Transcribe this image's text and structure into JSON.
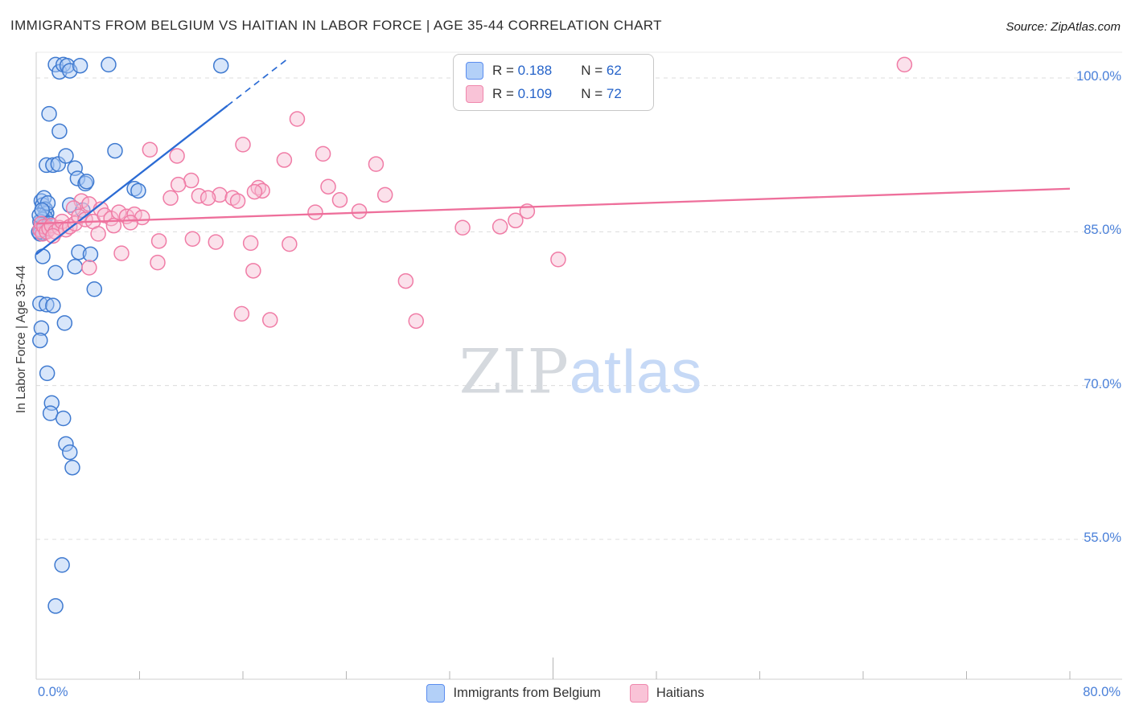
{
  "header": {
    "title": "IMMIGRANTS FROM BELGIUM VS HAITIAN IN LABOR FORCE | AGE 35-44 CORRELATION CHART",
    "source": "Source: ZipAtlas.com"
  },
  "watermark": {
    "part1": "ZIP",
    "part2": "atlas"
  },
  "legend_box": {
    "rows": [
      {
        "series": "Immigrants from Belgium",
        "r_label": "R =",
        "r_value": "0.188",
        "n_label": "N =",
        "n_value": "62"
      },
      {
        "series": "Haitians",
        "r_label": "R =",
        "r_value": "0.109",
        "n_label": "N =",
        "n_value": "72"
      }
    ]
  },
  "chart_data": {
    "type": "scatter",
    "title": "Immigrants from Belgium vs Haitian | In Labor Force | Age 35-44",
    "xlabel": "",
    "ylabel": "In Labor Force | Age 35-44",
    "x_min": 0,
    "x_max": 80,
    "y_gridlines": [
      100,
      85,
      70,
      55
    ],
    "y_ticks": [
      {
        "value": 100,
        "label": "100.0%"
      },
      {
        "value": 85,
        "label": "85.0%"
      },
      {
        "value": 70,
        "label": "70.0%"
      },
      {
        "value": 55,
        "label": "55.0%"
      }
    ],
    "x_end_labels": {
      "left": "0.0%",
      "right": "80.0%"
    },
    "x_minor_ticks": [
      8,
      16,
      24,
      32,
      40,
      48,
      56,
      64,
      72,
      80
    ],
    "grid": true,
    "legend_position": "bottom-center",
    "series": [
      {
        "name": "Immigrants from Belgium",
        "color": "#3f7ad0",
        "fill": "#a8c8f5",
        "r": 0.188,
        "n": 62,
        "points": [
          [
            1.5,
            101.3
          ],
          [
            1.8,
            100.6
          ],
          [
            2.1,
            101.3
          ],
          [
            2.4,
            101.2
          ],
          [
            2.6,
            100.7
          ],
          [
            3.4,
            101.2
          ],
          [
            5.6,
            101.3
          ],
          [
            14.3,
            101.2
          ],
          [
            1.0,
            96.5
          ],
          [
            1.8,
            94.8
          ],
          [
            0.8,
            91.5
          ],
          [
            1.3,
            91.5
          ],
          [
            1.7,
            91.6
          ],
          [
            2.3,
            92.4
          ],
          [
            6.1,
            92.9
          ],
          [
            3.0,
            91.2
          ],
          [
            3.2,
            90.2
          ],
          [
            3.8,
            89.7
          ],
          [
            0.4,
            88.0
          ],
          [
            0.5,
            87.6
          ],
          [
            0.6,
            88.3
          ],
          [
            0.7,
            87.2
          ],
          [
            0.8,
            86.8
          ],
          [
            0.9,
            87.8
          ],
          [
            0.7,
            86.4
          ],
          [
            0.5,
            86.2
          ],
          [
            0.6,
            85.8
          ],
          [
            0.4,
            85.5
          ],
          [
            0.3,
            86.0
          ],
          [
            0.35,
            85.2
          ],
          [
            0.3,
            84.8
          ],
          [
            0.55,
            84.9
          ],
          [
            0.25,
            86.6
          ],
          [
            0.45,
            87.1
          ],
          [
            1.0,
            85.8
          ],
          [
            0.2,
            85.0
          ],
          [
            2.6,
            87.6
          ],
          [
            3.6,
            87.1
          ],
          [
            3.9,
            89.9
          ],
          [
            7.6,
            89.2
          ],
          [
            7.9,
            89.0
          ],
          [
            0.5,
            82.6
          ],
          [
            1.5,
            81.0
          ],
          [
            3.0,
            81.6
          ],
          [
            3.3,
            83.0
          ],
          [
            4.2,
            82.8
          ],
          [
            4.5,
            79.4
          ],
          [
            0.3,
            78.0
          ],
          [
            0.8,
            77.9
          ],
          [
            1.3,
            77.8
          ],
          [
            0.4,
            75.6
          ],
          [
            2.2,
            76.1
          ],
          [
            0.3,
            74.4
          ],
          [
            0.85,
            71.2
          ],
          [
            1.2,
            68.3
          ],
          [
            1.1,
            67.3
          ],
          [
            2.1,
            66.8
          ],
          [
            2.3,
            64.3
          ],
          [
            2.6,
            63.5
          ],
          [
            2.8,
            62.0
          ],
          [
            2.0,
            52.5
          ],
          [
            1.5,
            48.5
          ]
        ]
      },
      {
        "name": "Haitians",
        "color": "#f07ca6",
        "fill": "#f7bcd2",
        "r": 0.109,
        "n": 72,
        "points": [
          [
            67.2,
            101.3
          ],
          [
            20.2,
            96.0
          ],
          [
            16.0,
            93.5
          ],
          [
            8.8,
            93.0
          ],
          [
            22.2,
            92.6
          ],
          [
            10.9,
            92.4
          ],
          [
            19.2,
            92.0
          ],
          [
            26.3,
            91.6
          ],
          [
            12.0,
            90.0
          ],
          [
            11.0,
            89.6
          ],
          [
            22.6,
            89.4
          ],
          [
            17.2,
            89.3
          ],
          [
            17.5,
            89.0
          ],
          [
            16.9,
            88.9
          ],
          [
            27.0,
            88.6
          ],
          [
            14.2,
            88.6
          ],
          [
            12.6,
            88.5
          ],
          [
            13.3,
            88.3
          ],
          [
            15.2,
            88.3
          ],
          [
            15.6,
            88.0
          ],
          [
            10.4,
            88.3
          ],
          [
            23.5,
            88.1
          ],
          [
            3.5,
            88.0
          ],
          [
            4.1,
            87.7
          ],
          [
            2.9,
            87.3
          ],
          [
            0.3,
            85.2
          ],
          [
            0.4,
            85.8
          ],
          [
            0.5,
            84.8
          ],
          [
            0.6,
            85.5
          ],
          [
            0.8,
            85.0
          ],
          [
            1.0,
            85.3
          ],
          [
            1.2,
            85.6
          ],
          [
            1.5,
            85.0
          ],
          [
            1.8,
            85.4
          ],
          [
            2.0,
            86.0
          ],
          [
            2.3,
            85.2
          ],
          [
            2.6,
            85.5
          ],
          [
            3.0,
            85.8
          ],
          [
            3.3,
            86.5
          ],
          [
            3.8,
            86.2
          ],
          [
            4.4,
            86.0
          ],
          [
            5.0,
            87.2
          ],
          [
            5.3,
            86.6
          ],
          [
            5.8,
            86.3
          ],
          [
            6.4,
            86.9
          ],
          [
            7.0,
            86.5
          ],
          [
            7.6,
            86.7
          ],
          [
            8.2,
            86.4
          ],
          [
            1.3,
            84.6
          ],
          [
            6.0,
            85.6
          ],
          [
            7.3,
            85.9
          ],
          [
            4.8,
            84.8
          ],
          [
            9.5,
            84.1
          ],
          [
            12.1,
            84.3
          ],
          [
            13.9,
            84.0
          ],
          [
            25.0,
            87.0
          ],
          [
            21.6,
            86.9
          ],
          [
            33.0,
            85.4
          ],
          [
            35.9,
            85.5
          ],
          [
            37.1,
            86.1
          ],
          [
            38.0,
            87.0
          ],
          [
            16.6,
            83.9
          ],
          [
            19.6,
            83.8
          ],
          [
            6.6,
            82.9
          ],
          [
            9.4,
            82.0
          ],
          [
            4.1,
            81.5
          ],
          [
            40.4,
            82.3
          ],
          [
            16.8,
            81.2
          ],
          [
            28.6,
            80.2
          ],
          [
            15.9,
            77.0
          ],
          [
            18.1,
            76.4
          ],
          [
            29.4,
            76.3
          ]
        ]
      }
    ],
    "trend_lines": [
      {
        "series": "Immigrants from Belgium",
        "color": "#2b6bd4",
        "solid": [
          [
            0,
            82.8
          ],
          [
            14.8,
            97.3
          ]
        ],
        "dashed": [
          [
            14.8,
            97.3
          ],
          [
            19.5,
            101.9
          ]
        ]
      },
      {
        "series": "Haitians",
        "color": "#ee6f9b",
        "solid": [
          [
            0,
            85.8
          ],
          [
            80,
            89.2
          ]
        ]
      }
    ]
  }
}
